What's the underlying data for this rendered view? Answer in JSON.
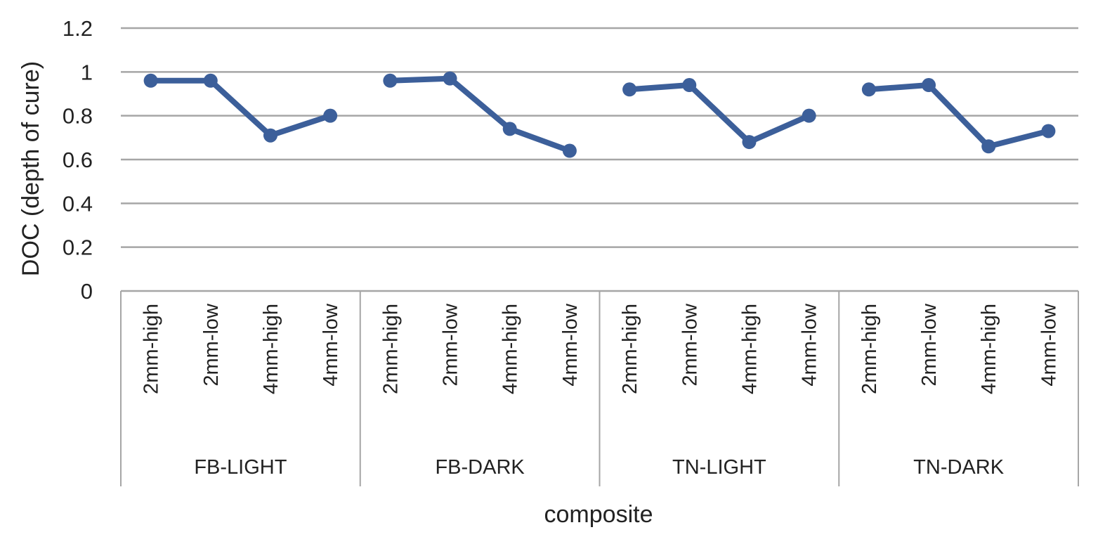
{
  "chart_data": {
    "type": "line",
    "title": "",
    "xlabel": "composite",
    "ylabel": "DOC (depth of cure)",
    "ylim": [
      0,
      1.2
    ],
    "yticks": [
      "0",
      "0.2",
      "0.4",
      "0.6",
      "0.8",
      "1",
      "1.2"
    ],
    "ytick_values": [
      0,
      0.2,
      0.4,
      0.6,
      0.8,
      1,
      1.2
    ],
    "grid": true,
    "legend": "none",
    "line_color": "#3c5f9a",
    "groups": [
      {
        "label": "FB-LIGHT",
        "categories": [
          "2mm-high",
          "2mm-low",
          "4mm-high",
          "4mm-low"
        ],
        "values": [
          0.96,
          0.96,
          0.71,
          0.8
        ]
      },
      {
        "label": "FB-DARK",
        "categories": [
          "2mm-high",
          "2mm-low",
          "4mm-high",
          "4mm-low"
        ],
        "values": [
          0.96,
          0.97,
          0.74,
          0.64
        ]
      },
      {
        "label": "TN-LIGHT",
        "categories": [
          "2mm-high",
          "2mm-low",
          "4mm-high",
          "4mm-low"
        ],
        "values": [
          0.92,
          0.94,
          0.68,
          0.8
        ]
      },
      {
        "label": "TN-DARK",
        "categories": [
          "2mm-high",
          "2mm-low",
          "4mm-high",
          "4mm-low"
        ],
        "values": [
          0.92,
          0.94,
          0.66,
          0.73
        ]
      }
    ]
  }
}
